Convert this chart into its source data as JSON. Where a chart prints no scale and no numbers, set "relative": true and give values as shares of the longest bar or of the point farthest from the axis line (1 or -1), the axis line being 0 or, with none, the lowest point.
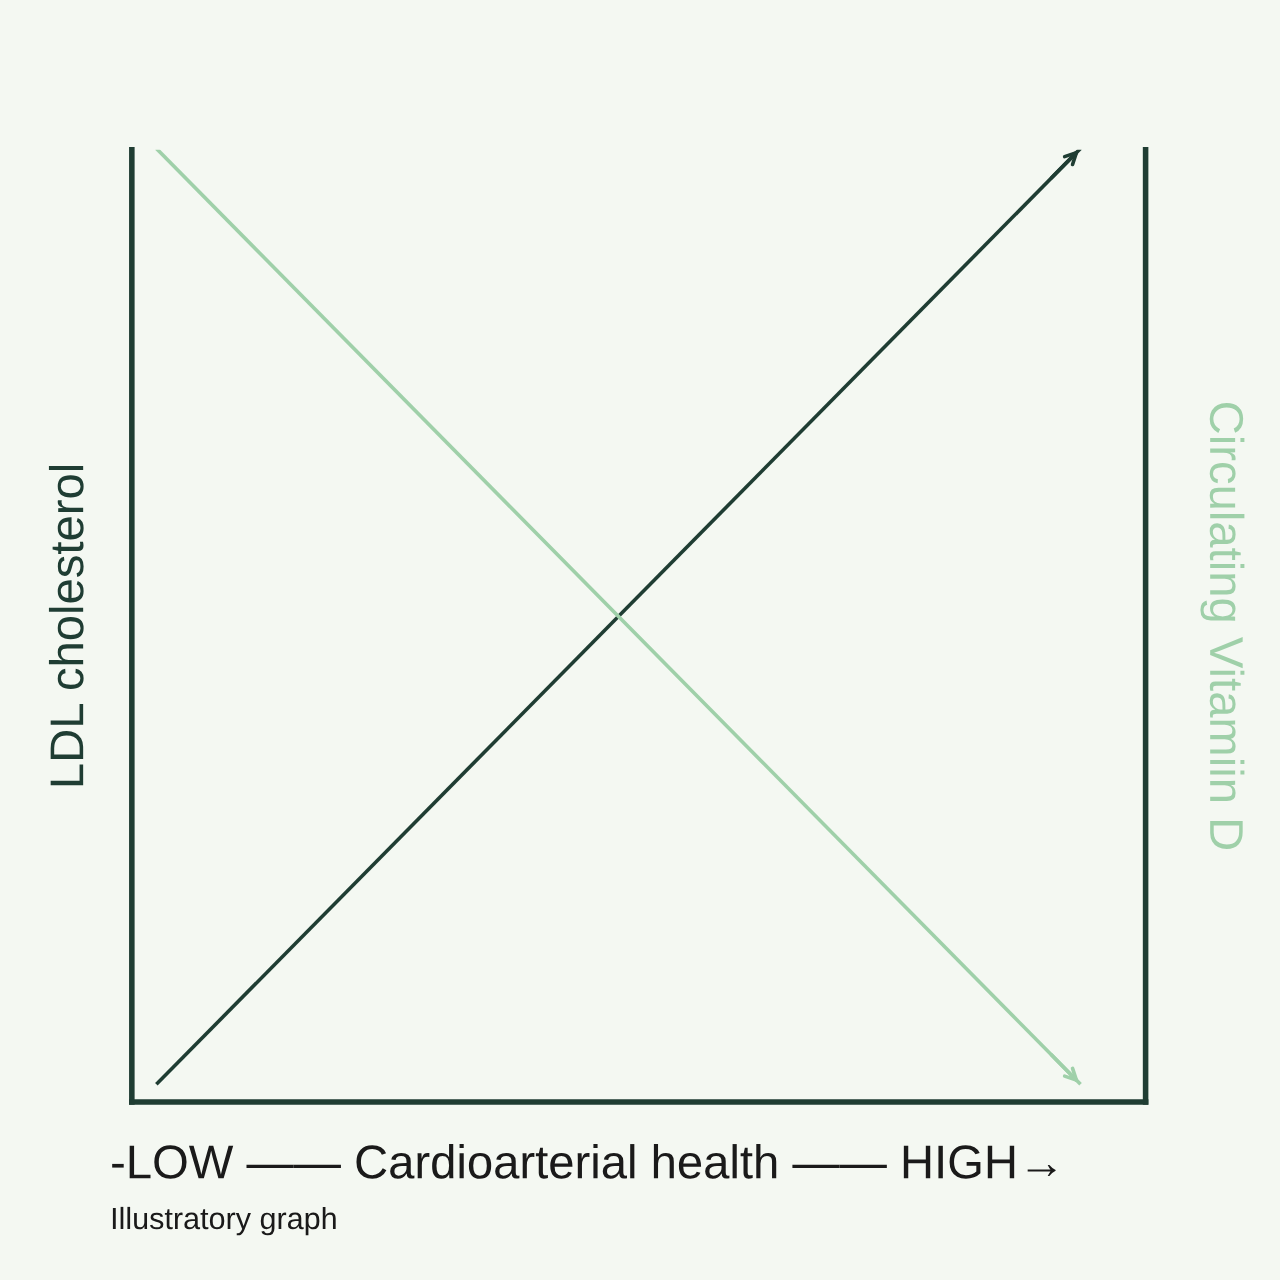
{
  "chart_data": {
    "type": "line",
    "relative": true,
    "categories": [
      null,
      null
    ],
    "xlabel": "-LOW —— Cardioarterial health —— HIGH→",
    "ylabel": "LDL cholesterol",
    "y2label": "Circulating Vitamiin D",
    "annotations": [
      "Illustratory graph"
    ],
    "marker": "none",
    "line_style": "solid",
    "series": [
      {
        "color": "#1f3d33",
        "values": [
          0.02,
          1
        ]
      },
      {
        "color": "#9fd0a9",
        "values": [
          1,
          0.02
        ]
      }
    ]
  }
}
